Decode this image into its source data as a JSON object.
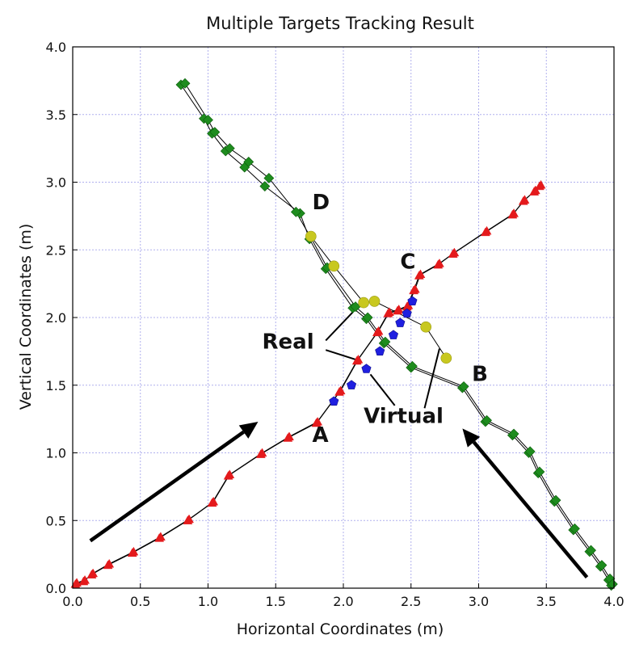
{
  "chart_data": {
    "type": "scatter",
    "title": "Multiple Targets Tracking Result",
    "xlabel": "Horizontal Coordinates (m)",
    "ylabel": "Vertical Coordinates (m)",
    "xlim": [
      0.0,
      4.0
    ],
    "ylim": [
      0.0,
      4.0
    ],
    "xticks": [
      "0.0",
      "0.5",
      "1.0",
      "1.5",
      "2.0",
      "2.5",
      "3.0",
      "3.5",
      "4.0"
    ],
    "yticks": [
      "0.0",
      "0.5",
      "1.0",
      "1.5",
      "2.0",
      "2.5",
      "3.0",
      "3.5",
      "4.0"
    ],
    "grid": true,
    "colors": {
      "red_triangles": "#e41a1c",
      "green_diamonds": "#1e8c1e",
      "blue_pentagons": "#1f1fe0",
      "yellow_circles": "#c8c820",
      "track_line": "#000000",
      "grid_line": "#b0b0ee"
    },
    "series": [
      {
        "marker": "triangle",
        "color": "#e41a1c",
        "x": [
          0.02,
          0.08,
          0.14,
          0.26,
          0.44,
          0.64,
          0.85,
          1.03,
          1.15,
          1.39,
          1.59,
          1.8,
          1.97,
          2.1,
          2.25,
          2.33,
          2.4,
          2.47,
          2.52,
          2.56,
          2.7,
          2.81,
          3.05,
          3.25,
          3.33,
          3.41,
          3.45
        ],
        "y": [
          0.03,
          0.05,
          0.1,
          0.17,
          0.26,
          0.37,
          0.5,
          0.63,
          0.83,
          0.99,
          1.11,
          1.22,
          1.45,
          1.68,
          1.89,
          2.03,
          2.05,
          2.08,
          2.2,
          2.31,
          2.39,
          2.47,
          2.63,
          2.76,
          2.86,
          2.93,
          2.97
        ]
      },
      {
        "marker": "triangle",
        "color": "#e41a1c",
        "x": [
          0.03,
          0.09,
          0.15,
          0.27,
          0.45,
          0.65,
          0.86,
          1.04,
          1.16,
          1.4,
          1.6,
          1.81,
          1.98,
          2.11,
          2.26,
          2.34,
          2.41,
          2.48,
          2.53,
          2.57,
          2.71,
          2.82,
          3.06,
          3.26,
          3.34,
          3.42,
          3.46
        ],
        "y": [
          0.04,
          0.06,
          0.11,
          0.18,
          0.27,
          0.38,
          0.51,
          0.64,
          0.84,
          1.0,
          1.12,
          1.23,
          1.46,
          1.69,
          1.9,
          2.04,
          2.06,
          2.09,
          2.21,
          2.32,
          2.4,
          2.48,
          2.64,
          2.77,
          2.87,
          2.94,
          2.98
        ]
      },
      {
        "marker": "diamond",
        "color": "#1e8c1e",
        "x": [
          0.8,
          0.97,
          1.03,
          1.13,
          1.27,
          1.42,
          1.68,
          1.75,
          1.87,
          2.07,
          2.17,
          2.3,
          2.5,
          2.88,
          3.05,
          3.25,
          3.37,
          3.44,
          3.56,
          3.7,
          3.82,
          3.9,
          3.96,
          3.98
        ],
        "y": [
          3.72,
          3.47,
          3.36,
          3.23,
          3.11,
          2.97,
          2.77,
          2.58,
          2.36,
          2.07,
          1.99,
          1.81,
          1.63,
          1.48,
          1.23,
          1.13,
          1.0,
          0.85,
          0.64,
          0.43,
          0.27,
          0.16,
          0.06,
          0.02
        ]
      },
      {
        "marker": "diamond",
        "color": "#1e8c1e",
        "x": [
          0.83,
          1.0,
          1.05,
          1.16,
          1.3,
          1.45,
          1.65,
          1.76,
          1.88,
          2.09,
          2.18,
          2.31,
          2.51,
          2.89,
          3.06,
          3.26,
          3.38,
          3.45,
          3.57,
          3.71,
          3.83,
          3.91,
          3.97,
          3.99
        ],
        "y": [
          3.73,
          3.46,
          3.37,
          3.25,
          3.15,
          3.03,
          2.78,
          2.59,
          2.37,
          2.08,
          2.0,
          1.82,
          1.64,
          1.49,
          1.24,
          1.14,
          1.01,
          0.86,
          0.65,
          0.44,
          0.28,
          0.17,
          0.07,
          0.03
        ]
      },
      {
        "marker": "pentagon",
        "color": "#1f1fe0",
        "x": [
          1.93,
          2.06,
          2.17,
          2.27,
          2.37,
          2.42,
          2.47,
          2.51
        ],
        "y": [
          1.38,
          1.5,
          1.62,
          1.75,
          1.87,
          1.96,
          2.03,
          2.12
        ]
      },
      {
        "marker": "circle",
        "color": "#c8c820",
        "x": [
          1.76,
          1.93,
          2.15,
          2.23,
          2.61,
          2.76
        ],
        "y": [
          2.6,
          2.38,
          2.11,
          2.12,
          1.93,
          1.7
        ]
      }
    ],
    "annotations": [
      {
        "text": "D",
        "x": 1.77,
        "y": 2.8
      },
      {
        "text": "C",
        "x": 2.42,
        "y": 2.36
      },
      {
        "text": "B",
        "x": 2.95,
        "y": 1.53
      },
      {
        "text": "A",
        "x": 1.77,
        "y": 1.08
      },
      {
        "text": "Real",
        "x": 1.4,
        "y": 1.77
      },
      {
        "text": "Virtual",
        "x": 2.15,
        "y": 1.22
      }
    ],
    "arrows": [
      {
        "from": [
          0.13,
          0.35
        ],
        "to": [
          1.37,
          1.23
        ]
      },
      {
        "from": [
          3.8,
          0.08
        ],
        "to": [
          2.88,
          1.18
        ]
      }
    ],
    "pointer_lines": [
      {
        "from": [
          1.87,
          1.83
        ],
        "to": [
          2.07,
          2.04
        ]
      },
      {
        "from": [
          1.87,
          1.76
        ],
        "to": [
          2.12,
          1.68
        ]
      },
      {
        "from": [
          2.38,
          1.35
        ],
        "to": [
          2.2,
          1.58
        ]
      },
      {
        "from": [
          2.6,
          1.33
        ],
        "to": [
          2.71,
          1.77
        ]
      }
    ]
  }
}
